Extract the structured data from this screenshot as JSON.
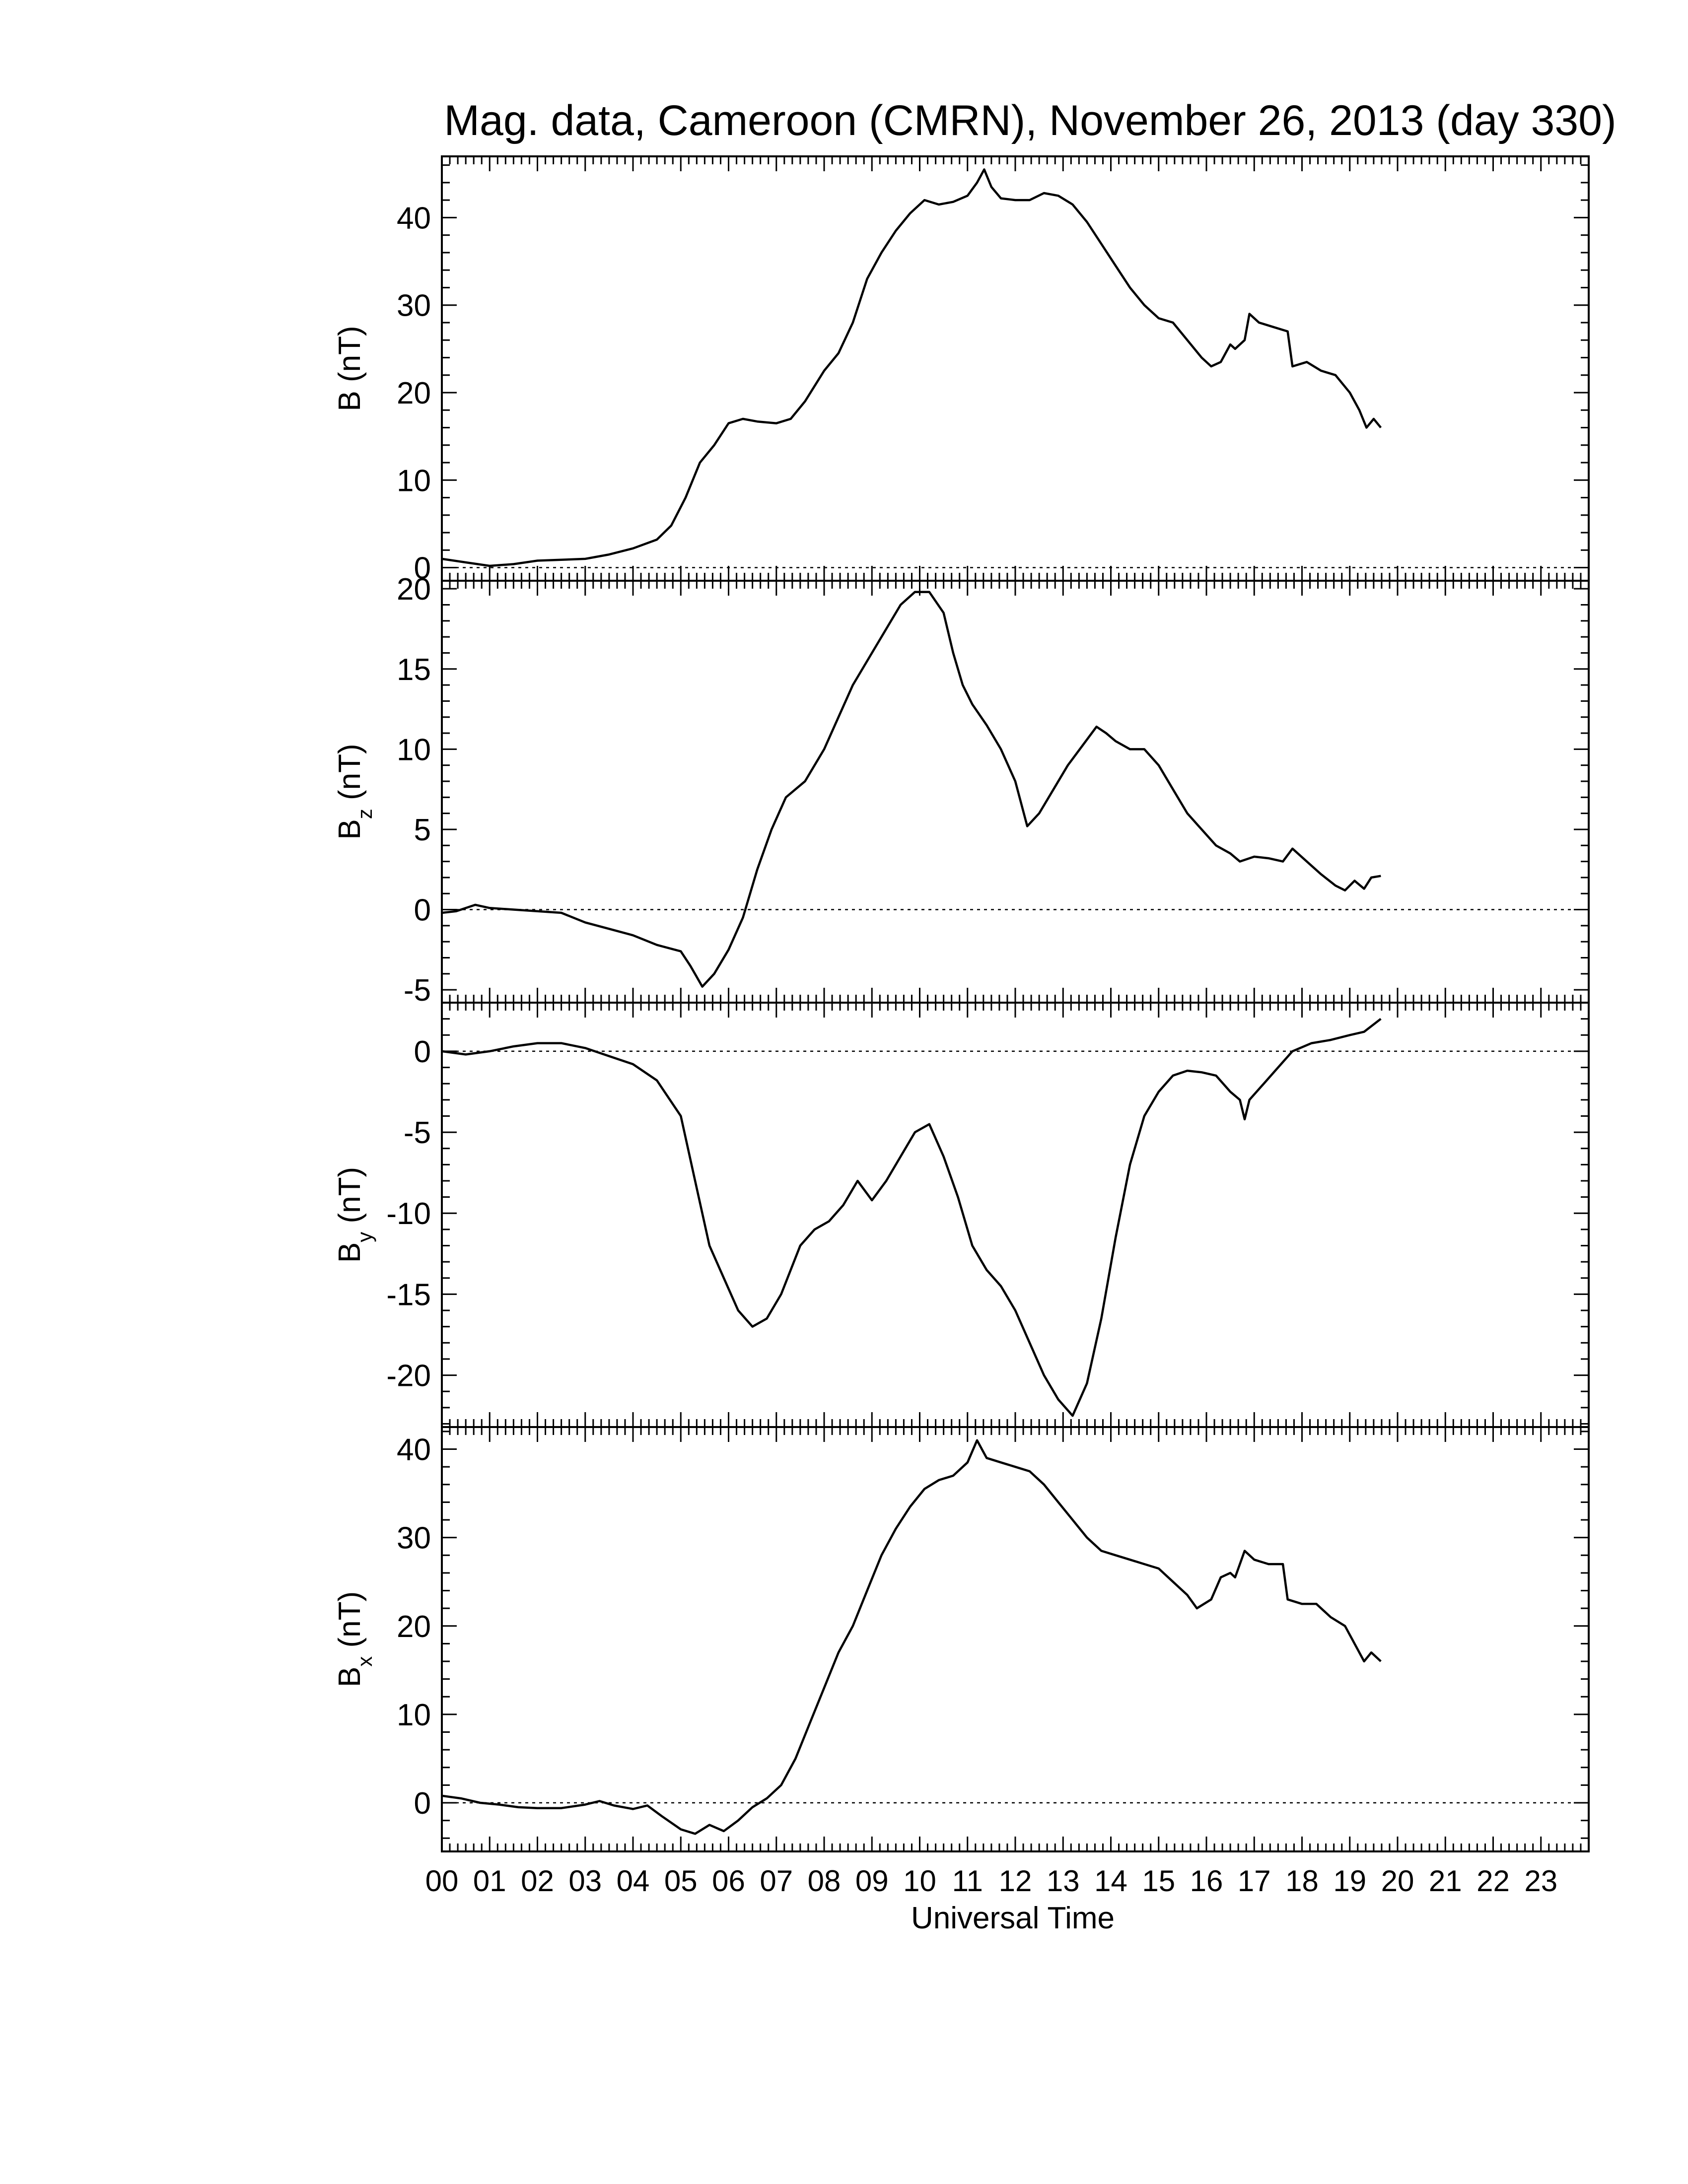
{
  "title": "Mag. data, Cameroon (CMRN), November 26, 2013 (day 330)",
  "chart_data": {
    "type": "line",
    "xlabel": "Universal Time",
    "xlim": [
      0,
      24
    ],
    "x_ticks": [
      "00",
      "01",
      "02",
      "03",
      "04",
      "05",
      "06",
      "07",
      "08",
      "09",
      "10",
      "11",
      "12",
      "13",
      "14",
      "15",
      "16",
      "17",
      "18",
      "19",
      "20",
      "21",
      "22",
      "23"
    ],
    "x_units": "hours UT",
    "panels": [
      {
        "name": "B",
        "ylabel_main": "B",
        "ylabel_sub": "",
        "ylabel_unit": " (nT)",
        "ylim": [
          -1.5,
          47
        ],
        "yticks": [
          0,
          10,
          20,
          30,
          40
        ],
        "ytick_labels": [
          "0",
          "10",
          "20",
          "30",
          "40"
        ],
        "zero_line": true,
        "points": [
          [
            0,
            1
          ],
          [
            0.5,
            0.6
          ],
          [
            1,
            0.2
          ],
          [
            1.5,
            0.4
          ],
          [
            2,
            0.8
          ],
          [
            2.5,
            0.9
          ],
          [
            3,
            1
          ],
          [
            3.5,
            1.5
          ],
          [
            4,
            2.2
          ],
          [
            4.5,
            3.2
          ],
          [
            4.8,
            4.8
          ],
          [
            5.1,
            8
          ],
          [
            5.4,
            12
          ],
          [
            5.7,
            14
          ],
          [
            6,
            16.5
          ],
          [
            6.3,
            17
          ],
          [
            6.6,
            16.7
          ],
          [
            7,
            16.5
          ],
          [
            7.3,
            17
          ],
          [
            7.6,
            19
          ],
          [
            8,
            22.5
          ],
          [
            8.3,
            24.5
          ],
          [
            8.6,
            28
          ],
          [
            8.9,
            33
          ],
          [
            9.2,
            36
          ],
          [
            9.5,
            38.5
          ],
          [
            9.8,
            40.5
          ],
          [
            10.1,
            42
          ],
          [
            10.4,
            41.5
          ],
          [
            10.7,
            41.8
          ],
          [
            11,
            42.5
          ],
          [
            11.2,
            44
          ],
          [
            11.35,
            45.5
          ],
          [
            11.5,
            43.5
          ],
          [
            11.7,
            42.2
          ],
          [
            12,
            42
          ],
          [
            12.3,
            42
          ],
          [
            12.6,
            42.8
          ],
          [
            12.9,
            42.5
          ],
          [
            13.2,
            41.5
          ],
          [
            13.5,
            39.5
          ],
          [
            13.8,
            37
          ],
          [
            14.1,
            34.5
          ],
          [
            14.4,
            32
          ],
          [
            14.7,
            30
          ],
          [
            15,
            28.5
          ],
          [
            15.3,
            28
          ],
          [
            15.6,
            26
          ],
          [
            15.9,
            24
          ],
          [
            16.1,
            23
          ],
          [
            16.3,
            23.5
          ],
          [
            16.5,
            25.5
          ],
          [
            16.6,
            25
          ],
          [
            16.8,
            26
          ],
          [
            16.9,
            29
          ],
          [
            17.1,
            28
          ],
          [
            17.4,
            27.5
          ],
          [
            17.7,
            27
          ],
          [
            17.8,
            23
          ],
          [
            18.1,
            23.5
          ],
          [
            18.4,
            22.5
          ],
          [
            18.7,
            22
          ],
          [
            19,
            20
          ],
          [
            19.2,
            18
          ],
          [
            19.35,
            16
          ],
          [
            19.5,
            17
          ],
          [
            19.65,
            16
          ]
        ]
      },
      {
        "name": "Bz",
        "ylabel_main": "B",
        "ylabel_sub": "z",
        "ylabel_unit": " (nT)",
        "ylim": [
          -5.8,
          20.5
        ],
        "yticks": [
          -5,
          0,
          5,
          10,
          15,
          20
        ],
        "ytick_labels": [
          "-5",
          "0",
          "5",
          "10",
          "15",
          "20"
        ],
        "zero_line": true,
        "points": [
          [
            0,
            -0.2
          ],
          [
            0.3,
            -0.1
          ],
          [
            0.7,
            0.3
          ],
          [
            1,
            0.1
          ],
          [
            1.5,
            0
          ],
          [
            2,
            -0.1
          ],
          [
            2.5,
            -0.2
          ],
          [
            3,
            -0.8
          ],
          [
            3.5,
            -1.2
          ],
          [
            4,
            -1.6
          ],
          [
            4.5,
            -2.2
          ],
          [
            5,
            -2.6
          ],
          [
            5.2,
            -3.5
          ],
          [
            5.45,
            -4.8
          ],
          [
            5.7,
            -4
          ],
          [
            6,
            -2.5
          ],
          [
            6.3,
            -0.5
          ],
          [
            6.6,
            2.5
          ],
          [
            6.9,
            5
          ],
          [
            7.2,
            7
          ],
          [
            7.6,
            8
          ],
          [
            8,
            10
          ],
          [
            8.3,
            12
          ],
          [
            8.6,
            14
          ],
          [
            9,
            16
          ],
          [
            9.3,
            17.5
          ],
          [
            9.6,
            19
          ],
          [
            9.9,
            19.8
          ],
          [
            10.2,
            19.8
          ],
          [
            10.5,
            18.5
          ],
          [
            10.7,
            16
          ],
          [
            10.9,
            14
          ],
          [
            11.1,
            12.8
          ],
          [
            11.4,
            11.5
          ],
          [
            11.7,
            10
          ],
          [
            12,
            8
          ],
          [
            12.25,
            5.2
          ],
          [
            12.5,
            6
          ],
          [
            12.8,
            7.5
          ],
          [
            13.1,
            9
          ],
          [
            13.4,
            10.2
          ],
          [
            13.7,
            11.4
          ],
          [
            13.9,
            11
          ],
          [
            14.1,
            10.5
          ],
          [
            14.4,
            10
          ],
          [
            14.7,
            10
          ],
          [
            15,
            9
          ],
          [
            15.3,
            7.5
          ],
          [
            15.6,
            6
          ],
          [
            15.9,
            5
          ],
          [
            16.2,
            4
          ],
          [
            16.5,
            3.5
          ],
          [
            16.7,
            3
          ],
          [
            17,
            3.3
          ],
          [
            17.3,
            3.2
          ],
          [
            17.6,
            3
          ],
          [
            17.8,
            3.8
          ],
          [
            18.1,
            3
          ],
          [
            18.4,
            2.2
          ],
          [
            18.7,
            1.5
          ],
          [
            18.9,
            1.2
          ],
          [
            19.1,
            1.8
          ],
          [
            19.3,
            1.3
          ],
          [
            19.45,
            2
          ],
          [
            19.65,
            2.1
          ]
        ]
      },
      {
        "name": "By",
        "ylabel_main": "B",
        "ylabel_sub": "y",
        "ylabel_unit": " (nT)",
        "ylim": [
          -23.2,
          3
        ],
        "yticks": [
          -20,
          -15,
          -10,
          -5,
          0
        ],
        "ytick_labels": [
          "-20",
          "-15",
          "-10",
          "-5",
          "0"
        ],
        "zero_line": true,
        "points": [
          [
            0,
            0
          ],
          [
            0.5,
            -0.2
          ],
          [
            1,
            0
          ],
          [
            1.5,
            0.3
          ],
          [
            2,
            0.5
          ],
          [
            2.5,
            0.5
          ],
          [
            3,
            0.2
          ],
          [
            3.5,
            -0.3
          ],
          [
            4,
            -0.8
          ],
          [
            4.5,
            -1.8
          ],
          [
            5,
            -4
          ],
          [
            5.3,
            -8
          ],
          [
            5.6,
            -12
          ],
          [
            5.9,
            -14
          ],
          [
            6.2,
            -16
          ],
          [
            6.5,
            -17
          ],
          [
            6.8,
            -16.5
          ],
          [
            7.1,
            -15
          ],
          [
            7.5,
            -12
          ],
          [
            7.8,
            -11
          ],
          [
            8.1,
            -10.5
          ],
          [
            8.4,
            -9.5
          ],
          [
            8.7,
            -8
          ],
          [
            9,
            -9.2
          ],
          [
            9.3,
            -8
          ],
          [
            9.6,
            -6.5
          ],
          [
            9.9,
            -5
          ],
          [
            10.2,
            -4.5
          ],
          [
            10.5,
            -6.5
          ],
          [
            10.8,
            -9
          ],
          [
            11.1,
            -12
          ],
          [
            11.4,
            -13.5
          ],
          [
            11.7,
            -14.5
          ],
          [
            12,
            -16
          ],
          [
            12.3,
            -18
          ],
          [
            12.6,
            -20
          ],
          [
            12.9,
            -21.5
          ],
          [
            13.2,
            -22.5
          ],
          [
            13.5,
            -20.5
          ],
          [
            13.8,
            -16.5
          ],
          [
            14.1,
            -11.5
          ],
          [
            14.4,
            -7
          ],
          [
            14.7,
            -4
          ],
          [
            15,
            -2.5
          ],
          [
            15.3,
            -1.5
          ],
          [
            15.6,
            -1.2
          ],
          [
            15.9,
            -1.3
          ],
          [
            16.2,
            -1.5
          ],
          [
            16.5,
            -2.5
          ],
          [
            16.7,
            -3
          ],
          [
            16.8,
            -4.2
          ],
          [
            16.9,
            -3
          ],
          [
            17.2,
            -2
          ],
          [
            17.5,
            -1
          ],
          [
            17.8,
            0
          ],
          [
            18.2,
            0.5
          ],
          [
            18.6,
            0.7
          ],
          [
            19,
            1
          ],
          [
            19.3,
            1.2
          ],
          [
            19.65,
            2
          ]
        ]
      },
      {
        "name": "Bx",
        "ylabel_main": "B",
        "ylabel_sub": "x",
        "ylabel_unit": " (nT)",
        "ylim": [
          -5.5,
          42.5
        ],
        "yticks": [
          0,
          10,
          20,
          30,
          40
        ],
        "ytick_labels": [
          "0",
          "10",
          "20",
          "30",
          "40"
        ],
        "zero_line": true,
        "points": [
          [
            0,
            0.8
          ],
          [
            0.4,
            0.5
          ],
          [
            0.8,
            0
          ],
          [
            1.2,
            -0.2
          ],
          [
            1.6,
            -0.5
          ],
          [
            2,
            -0.6
          ],
          [
            2.5,
            -0.6
          ],
          [
            3,
            -0.2
          ],
          [
            3.3,
            0.2
          ],
          [
            3.6,
            -0.3
          ],
          [
            4,
            -0.7
          ],
          [
            4.3,
            -0.3
          ],
          [
            4.6,
            -1.5
          ],
          [
            5,
            -3
          ],
          [
            5.3,
            -3.5
          ],
          [
            5.6,
            -2.5
          ],
          [
            5.9,
            -3.2
          ],
          [
            6.2,
            -2
          ],
          [
            6.5,
            -0.5
          ],
          [
            6.8,
            0.5
          ],
          [
            7.1,
            2
          ],
          [
            7.4,
            5
          ],
          [
            7.7,
            9
          ],
          [
            8,
            13
          ],
          [
            8.3,
            17
          ],
          [
            8.6,
            20
          ],
          [
            8.9,
            24
          ],
          [
            9.2,
            28
          ],
          [
            9.5,
            31
          ],
          [
            9.8,
            33.5
          ],
          [
            10.1,
            35.5
          ],
          [
            10.4,
            36.5
          ],
          [
            10.7,
            37
          ],
          [
            11,
            38.5
          ],
          [
            11.2,
            41
          ],
          [
            11.4,
            39
          ],
          [
            11.7,
            38.5
          ],
          [
            12,
            38
          ],
          [
            12.3,
            37.5
          ],
          [
            12.6,
            36
          ],
          [
            12.9,
            34
          ],
          [
            13.2,
            32
          ],
          [
            13.5,
            30
          ],
          [
            13.8,
            28.5
          ],
          [
            14.1,
            28
          ],
          [
            14.4,
            27.5
          ],
          [
            14.7,
            27
          ],
          [
            15,
            26.5
          ],
          [
            15.3,
            25
          ],
          [
            15.6,
            23.5
          ],
          [
            15.8,
            22
          ],
          [
            16.1,
            23
          ],
          [
            16.3,
            25.5
          ],
          [
            16.5,
            26
          ],
          [
            16.6,
            25.5
          ],
          [
            16.8,
            28.5
          ],
          [
            17,
            27.5
          ],
          [
            17.3,
            27
          ],
          [
            17.6,
            27
          ],
          [
            17.7,
            23
          ],
          [
            18,
            22.5
          ],
          [
            18.3,
            22.5
          ],
          [
            18.6,
            21
          ],
          [
            18.9,
            20
          ],
          [
            19.1,
            18
          ],
          [
            19.3,
            16
          ],
          [
            19.45,
            17
          ],
          [
            19.65,
            16
          ]
        ]
      }
    ]
  }
}
